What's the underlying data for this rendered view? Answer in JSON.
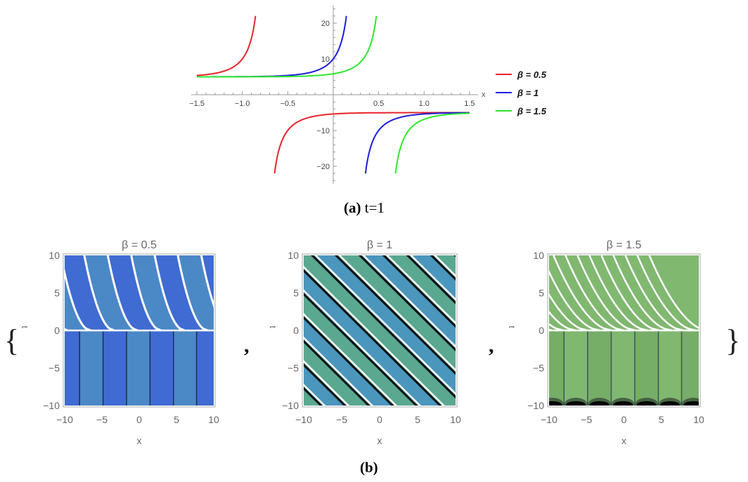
{
  "caption_a": {
    "label": "(a)",
    "text": "t=1"
  },
  "caption_b": {
    "label": "(b)"
  },
  "brace_open": "{",
  "brace_close": "}",
  "separator": ",",
  "chart_data": [
    {
      "type": "line",
      "title": "",
      "xlabel": "x",
      "ylabel": "",
      "xlim": [
        -1.5,
        1.5
      ],
      "ylim": [
        -24,
        24
      ],
      "xticks": [
        "-1.5",
        "-1.0",
        "-0.5",
        "0.5",
        "1.0",
        "1.5"
      ],
      "xtick_values": [
        -1.5,
        -1.0,
        -0.5,
        0.5,
        1.0,
        1.5
      ],
      "yticks": [
        "20",
        "10",
        "-10",
        "-20"
      ],
      "ytick_values": [
        20,
        10,
        -10,
        -20
      ],
      "legend_position": "right",
      "series": [
        {
          "name": "β = 0.5",
          "color": "#e8242a",
          "pole_x": -0.75,
          "left_asymptote_y": 5,
          "right_asymptote_y": -5,
          "points": [
            [
              -1.5,
              5.4
            ],
            [
              -1.0,
              10.0
            ],
            [
              -0.85,
              23
            ],
            [
              -0.65,
              -23
            ],
            [
              -0.5,
              -9.7
            ],
            [
              0,
              -5.1
            ],
            [
              1.5,
              -5.0
            ]
          ]
        },
        {
          "name": "β = 1",
          "color": "#1d1de0",
          "pole_x": 0.25,
          "left_asymptote_y": 5,
          "right_asymptote_y": -5,
          "points": [
            [
              -1.5,
              5.0
            ],
            [
              -0.5,
              5.4
            ],
            [
              0,
              10.0
            ],
            [
              0.15,
              23
            ],
            [
              0.35,
              -23
            ],
            [
              0.5,
              -10.0
            ],
            [
              1.5,
              -5.0
            ]
          ]
        },
        {
          "name": "β = 1.5",
          "color": "#2ee82e",
          "pole_x": 0.58,
          "left_asymptote_y": 5,
          "right_asymptote_y": -5,
          "points": [
            [
              -1.5,
              5.0
            ],
            [
              0,
              6.1
            ],
            [
              0.48,
              23
            ],
            [
              0.68,
              -23
            ],
            [
              1.0,
              -6.0
            ],
            [
              1.5,
              -5.3
            ]
          ]
        }
      ]
    },
    {
      "type": "heatmap",
      "title": "β = 0.5",
      "xlabel": "x",
      "ylabel": "t",
      "xlim": [
        -10,
        10
      ],
      "ylim": [
        -10,
        10
      ],
      "xticks": [
        "-10",
        "-5",
        "0",
        "5",
        "10"
      ],
      "yticks": [
        "10",
        "5",
        "0",
        "-5",
        "-10"
      ],
      "colors": [
        "#3f6bd2",
        "#4b88c6"
      ],
      "pattern": "vertical stripes for t<0, curved bands for t>0"
    },
    {
      "type": "heatmap",
      "title": "β = 1",
      "xlabel": "x",
      "ylabel": "t",
      "xlim": [
        -10,
        10
      ],
      "ylim": [
        -10,
        10
      ],
      "xticks": [
        "-10",
        "-5",
        "0",
        "5",
        "10"
      ],
      "yticks": [
        "10",
        "5",
        "0",
        "-5",
        "-10"
      ],
      "colors": [
        "#5aa890",
        "#4a96bd"
      ],
      "pattern": "diagonal stripes along x + t = const"
    },
    {
      "type": "heatmap",
      "title": "β = 1.5",
      "xlabel": "x",
      "ylabel": "t",
      "xlim": [
        -10,
        10
      ],
      "ylim": [
        -10,
        10
      ],
      "xticks": [
        "-10",
        "-5",
        "0",
        "5",
        "10"
      ],
      "yticks": [
        "10",
        "5",
        "0",
        "-5",
        "-10"
      ],
      "colors": [
        "#80b870",
        "#76ad67"
      ],
      "pattern": "vertical stripes for t<0, curved contours for t>0"
    }
  ]
}
